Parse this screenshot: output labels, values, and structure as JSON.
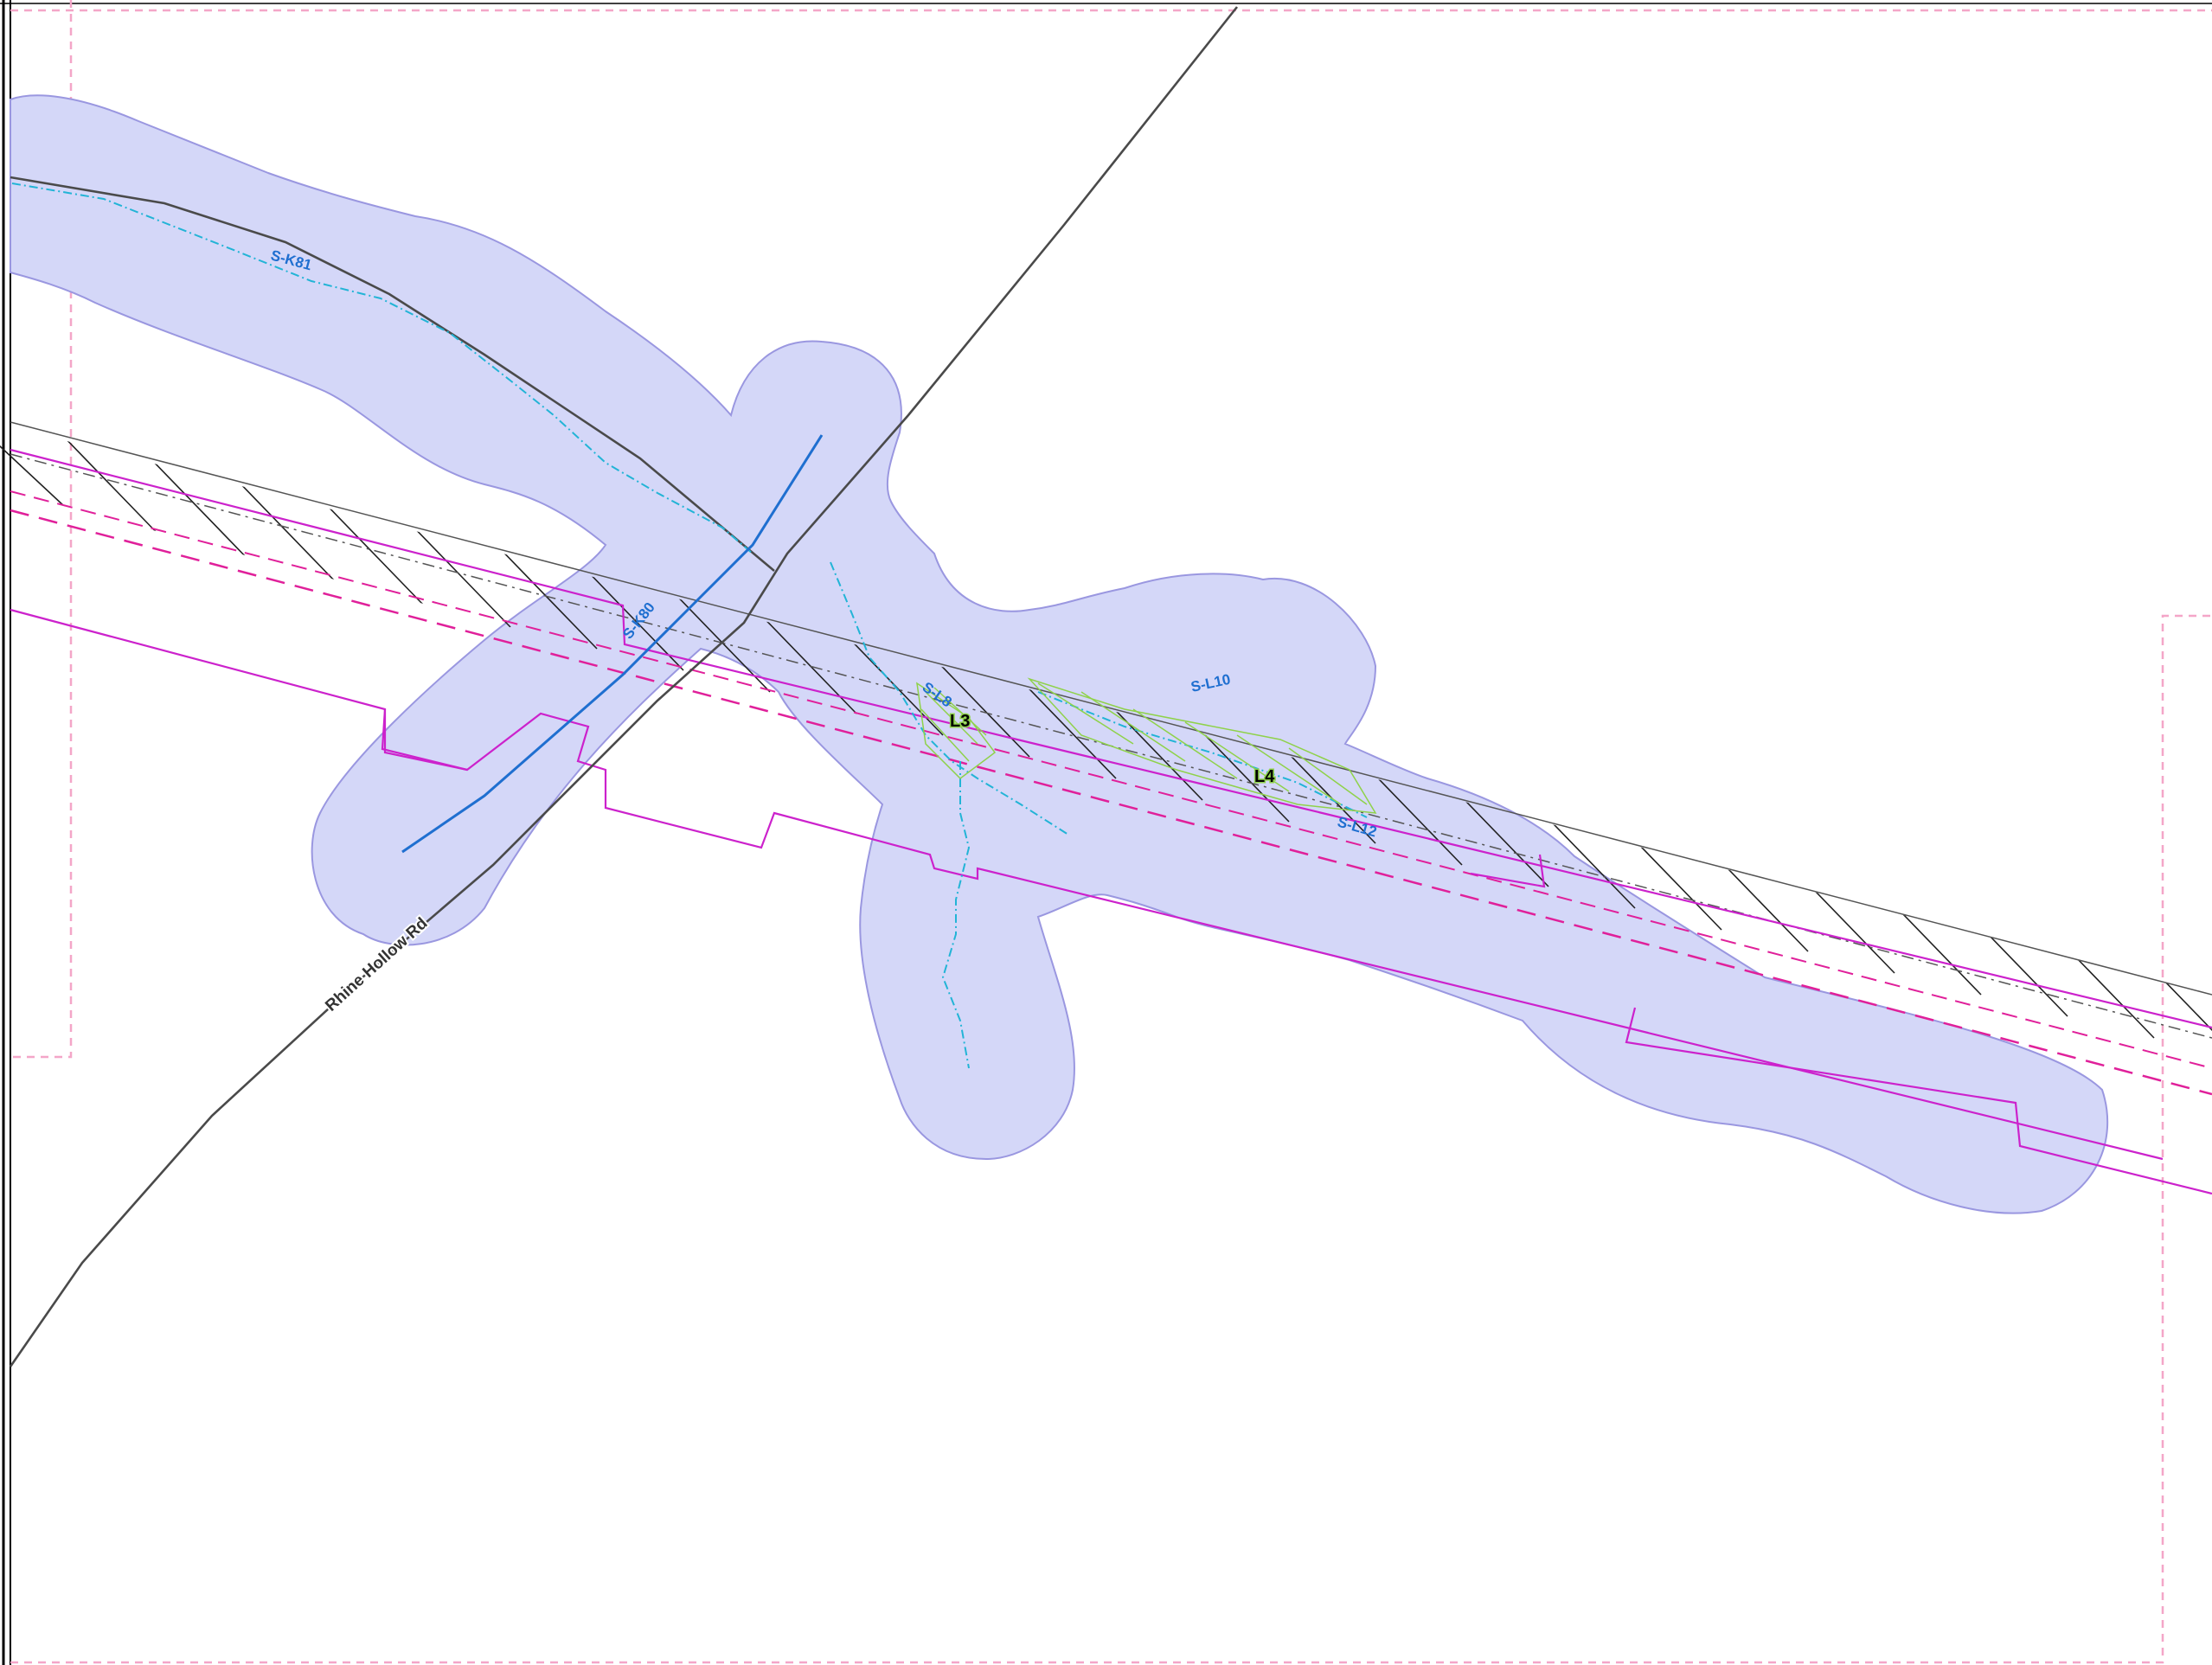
{
  "map": {
    "road_label": "Rhine Hollow Rd",
    "stream_labels": {
      "s_k81": "S-K81",
      "s_k80": "S-K80",
      "s_l8": "S-L8",
      "s_l10": "S-L10",
      "s_l12": "S-L12"
    },
    "wetland_labels": {
      "l3": "L3",
      "l4": "L4"
    }
  },
  "colors": {
    "buffer_fill": "#d4d7f8",
    "buffer_stroke": "#9a97e0",
    "road": "#4a4a4a",
    "stream_dashed": "#22b4d6",
    "stream_solid": "#1f6fd0",
    "parcel_magenta": "#cc22cc",
    "row_dashed_magenta": "#e0209a",
    "sheet_border_pink": "#f4a6c8",
    "wetland_green": "#8fd24a",
    "label_blue": "#1f6fd0"
  }
}
